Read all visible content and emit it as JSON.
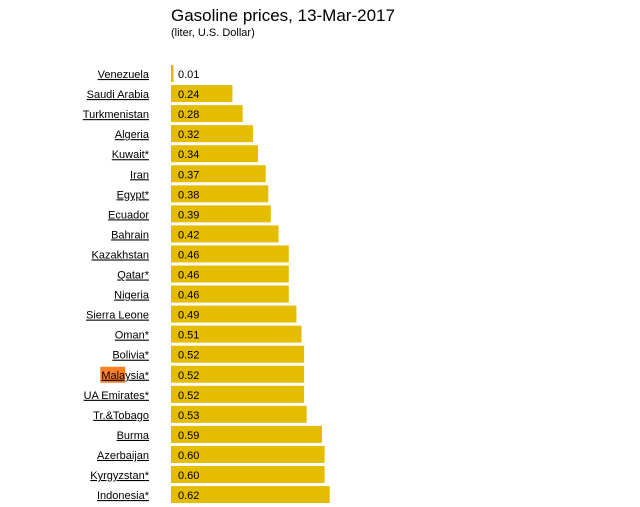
{
  "chart_data": {
    "type": "bar",
    "orientation": "horizontal",
    "title": "Gasoline prices, 13-Mar-2017",
    "subtitle": "(liter, U.S. Dollar)",
    "bar_color": "#e5bd00",
    "highlight_color": "#ff7f27",
    "categories": [
      "Venezuela",
      "Saudi Arabia",
      "Turkmenistan",
      "Algeria",
      "Kuwait*",
      "Iran",
      "Egypt*",
      "Ecuador",
      "Bahrain",
      "Kazakhstan",
      "Qatar*",
      "Nigeria",
      "Sierra Leone",
      "Oman*",
      "Bolivia*",
      "Malaysia*",
      "UA Emirates*",
      "Tr.&Tobago",
      "Burma",
      "Azerbaijan",
      "Kyrgyzstan*",
      "Indonesia*"
    ],
    "labels": [
      "0.01",
      "0.24",
      "0.28",
      "0.32",
      "0.34",
      "0.37",
      "0.38",
      "0.39",
      "0.42",
      "0.46",
      "0.46",
      "0.46",
      "0.49",
      "0.51",
      "0.52",
      "0.52",
      "0.52",
      "0.53",
      "0.59",
      "0.60",
      "0.60",
      "0.62"
    ],
    "values": [
      0.01,
      0.24,
      0.28,
      0.32,
      0.34,
      0.37,
      0.38,
      0.39,
      0.42,
      0.46,
      0.46,
      0.46,
      0.49,
      0.51,
      0.52,
      0.52,
      0.52,
      0.53,
      0.59,
      0.6,
      0.6,
      0.62
    ],
    "highlighted_category": "Malaysia*",
    "highlighted_text": "Mala"
  }
}
